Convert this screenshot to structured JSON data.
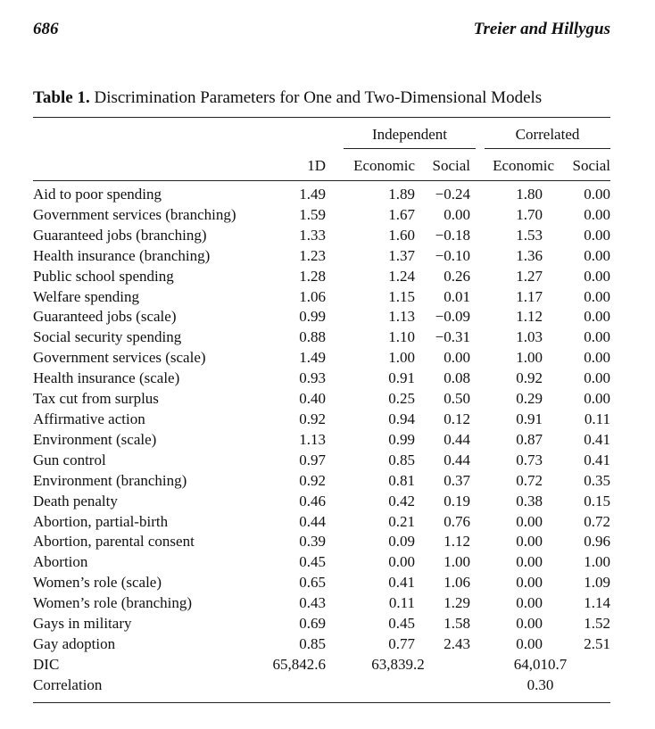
{
  "header": {
    "page_number": "686",
    "running_head": "Treier and Hillygus"
  },
  "table": {
    "label": "Table 1.",
    "title": "Discrimination Parameters for One and Two-Dimensional Models",
    "groups": [
      "Independent",
      "Correlated"
    ],
    "columns": [
      "1D",
      "Economic",
      "Social",
      "Economic",
      "Social"
    ],
    "rows": [
      {
        "label": "Aid to poor spending",
        "values": [
          "1.49",
          "1.89",
          "−0.24",
          "1.80",
          "0.00"
        ]
      },
      {
        "label": "Government services (branching)",
        "values": [
          "1.59",
          "1.67",
          "0.00",
          "1.70",
          "0.00"
        ]
      },
      {
        "label": "Guaranteed jobs (branching)",
        "values": [
          "1.33",
          "1.60",
          "−0.18",
          "1.53",
          "0.00"
        ]
      },
      {
        "label": "Health insurance (branching)",
        "values": [
          "1.23",
          "1.37",
          "−0.10",
          "1.36",
          "0.00"
        ]
      },
      {
        "label": "Public school spending",
        "values": [
          "1.28",
          "1.24",
          "0.26",
          "1.27",
          "0.00"
        ]
      },
      {
        "label": "Welfare spending",
        "values": [
          "1.06",
          "1.15",
          "0.01",
          "1.17",
          "0.00"
        ]
      },
      {
        "label": "Guaranteed jobs (scale)",
        "values": [
          "0.99",
          "1.13",
          "−0.09",
          "1.12",
          "0.00"
        ]
      },
      {
        "label": "Social security spending",
        "values": [
          "0.88",
          "1.10",
          "−0.31",
          "1.03",
          "0.00"
        ]
      },
      {
        "label": "Government services (scale)",
        "values": [
          "1.49",
          "1.00",
          "0.00",
          "1.00",
          "0.00"
        ]
      },
      {
        "label": "Health insurance (scale)",
        "values": [
          "0.93",
          "0.91",
          "0.08",
          "0.92",
          "0.00"
        ]
      },
      {
        "label": "Tax cut from surplus",
        "values": [
          "0.40",
          "0.25",
          "0.50",
          "0.29",
          "0.00"
        ]
      },
      {
        "label": "Affirmative action",
        "values": [
          "0.92",
          "0.94",
          "0.12",
          "0.91",
          "0.11"
        ]
      },
      {
        "label": "Environment (scale)",
        "values": [
          "1.13",
          "0.99",
          "0.44",
          "0.87",
          "0.41"
        ]
      },
      {
        "label": "Gun control",
        "values": [
          "0.97",
          "0.85",
          "0.44",
          "0.73",
          "0.41"
        ]
      },
      {
        "label": "Environment (branching)",
        "values": [
          "0.92",
          "0.81",
          "0.37",
          "0.72",
          "0.35"
        ]
      },
      {
        "label": "Death penalty",
        "values": [
          "0.46",
          "0.42",
          "0.19",
          "0.38",
          "0.15"
        ]
      },
      {
        "label": "Abortion, partial-birth",
        "values": [
          "0.44",
          "0.21",
          "0.76",
          "0.00",
          "0.72"
        ]
      },
      {
        "label": "Abortion, parental consent",
        "values": [
          "0.39",
          "0.09",
          "1.12",
          "0.00",
          "0.96"
        ]
      },
      {
        "label": "Abortion",
        "values": [
          "0.45",
          "0.00",
          "1.00",
          "0.00",
          "1.00"
        ]
      },
      {
        "label": "Women’s role (scale)",
        "values": [
          "0.65",
          "0.41",
          "1.06",
          "0.00",
          "1.09"
        ]
      },
      {
        "label": "Women’s role (branching)",
        "values": [
          "0.43",
          "0.11",
          "1.29",
          "0.00",
          "1.14"
        ]
      },
      {
        "label": "Gays in military",
        "values": [
          "0.69",
          "0.45",
          "1.58",
          "0.00",
          "1.52"
        ]
      },
      {
        "label": "Gay adoption",
        "values": [
          "0.85",
          "0.77",
          "2.43",
          "0.00",
          "2.51"
        ]
      }
    ],
    "dic": {
      "label": "DIC",
      "one_d": "65,842.6",
      "independent": "63,839.2",
      "correlated": "64,010.7"
    },
    "correlation": {
      "label": "Correlation",
      "correlated": "0.30"
    }
  }
}
